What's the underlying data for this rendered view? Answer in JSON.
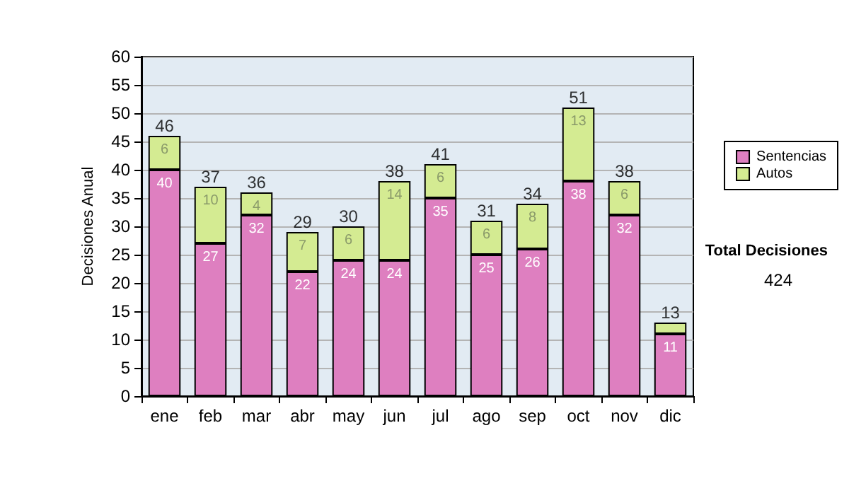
{
  "chart_data": {
    "type": "bar",
    "ylabel": "Decisiones Anual",
    "categories": [
      "ene",
      "feb",
      "mar",
      "abr",
      "may",
      "jun",
      "jul",
      "ago",
      "sep",
      "oct",
      "nov",
      "dic"
    ],
    "stacked": true,
    "series": [
      {
        "name": "Sentencias",
        "color": "#de7fc0",
        "values": [
          40,
          27,
          32,
          22,
          24,
          24,
          35,
          25,
          26,
          38,
          32,
          11
        ],
        "value_labels": [
          "40",
          "27",
          "32",
          "22",
          "24",
          "24",
          "35",
          "25",
          "26",
          "38",
          "32",
          "11"
        ]
      },
      {
        "name": "Autos",
        "color": "#d4eb92",
        "values": [
          6,
          10,
          4,
          7,
          6,
          14,
          6,
          6,
          8,
          13,
          6,
          2
        ],
        "value_labels": [
          "6",
          "10",
          "4",
          "7",
          "6",
          "14",
          "6",
          "6",
          "8",
          "13",
          "6",
          null
        ]
      }
    ],
    "totals": [
      "46",
      "37",
      "36",
      "29",
      "30",
      "38",
      "41",
      "31",
      "34",
      "51",
      "38",
      "13"
    ],
    "ylim": [
      0,
      60
    ],
    "yticks": [
      0,
      5,
      10,
      15,
      20,
      25,
      30,
      35,
      40,
      45,
      50,
      55,
      60
    ],
    "grid": "y",
    "legend": "right",
    "annotations": [
      "Total Decisiones",
      "424"
    ]
  }
}
